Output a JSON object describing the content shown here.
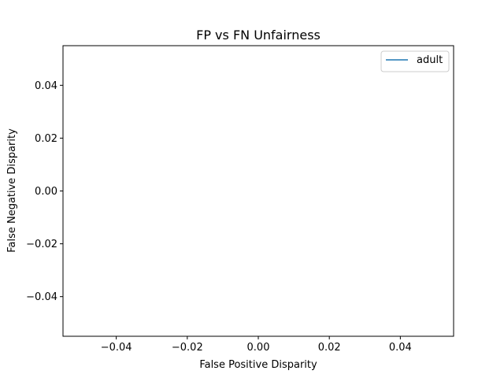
{
  "chart_data": {
    "type": "line",
    "title": "FP vs FN Unfairness",
    "xlabel": "False Positive Disparity",
    "ylabel": "False Negative Disparity",
    "xlim": [
      -0.055,
      0.055
    ],
    "ylim": [
      -0.055,
      0.055
    ],
    "x_ticks": [
      -0.04,
      -0.02,
      0.0,
      0.02,
      0.04
    ],
    "x_tick_labels": [
      "−0.04",
      "−0.02",
      "0.00",
      "0.02",
      "0.04"
    ],
    "y_ticks": [
      -0.04,
      -0.02,
      0.0,
      0.02,
      0.04
    ],
    "y_tick_labels": [
      "−0.04",
      "−0.02",
      "0.00",
      "0.02",
      "0.04"
    ],
    "grid": false,
    "legend_position": "upper right",
    "series": [
      {
        "name": "adult",
        "color": "#1f77b4",
        "x": [],
        "y": []
      }
    ]
  }
}
